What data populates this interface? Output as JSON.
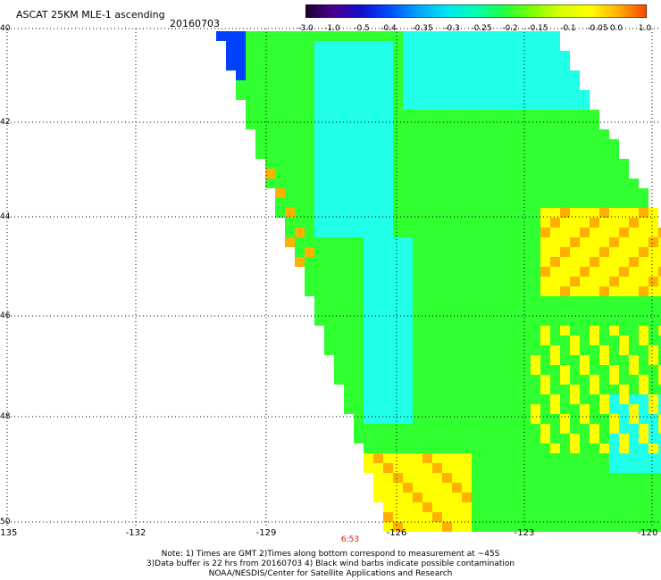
{
  "header": {
    "title": "ASCAT 25KM MLE-1 ascending",
    "date": "20160703"
  },
  "colorbar": {
    "tick_labels": [
      "-3.0",
      "-1.0",
      "-0.5",
      "-0.4",
      "-0.35",
      "-0.3",
      "-0.25",
      "-0.2",
      "-0.15",
      "-0.1",
      "-0.05",
      "0.0",
      "1.0"
    ],
    "colors": [
      "#1a0030",
      "#4b0090",
      "#1010d0",
      "#0050ff",
      "#00a8ff",
      "#00e8f0",
      "#00ffb0",
      "#20ff40",
      "#80ff00",
      "#d8ff00",
      "#ffff00",
      "#ffb000",
      "#ff4000"
    ]
  },
  "map": {
    "y_tick_labels": [
      "40",
      "42",
      "44",
      "46",
      "48",
      "50"
    ],
    "x_tick_labels": [
      "-135",
      "-132",
      "-129",
      "-126",
      "-123",
      "-120"
    ],
    "pass_time": "6:53"
  },
  "footer": {
    "line1": "Note: 1) Times are GMT 2)Times along bottom correspond to measurement at ~45S",
    "line2": "3)Data buffer is 22 hrs from 20160703 4) Black wind barbs indicate possible contamination",
    "line3": "NOAA/NESDIS/Center for Satellite Applications and Research"
  },
  "colors": {
    "gridline": "#000000",
    "background": "#ffffff",
    "cyan_region": "#20ffe8",
    "green_region": "#30ff30",
    "yellow_region": "#ffff00",
    "orange_region": "#ffb000",
    "blue_spot": "#0040ff"
  }
}
